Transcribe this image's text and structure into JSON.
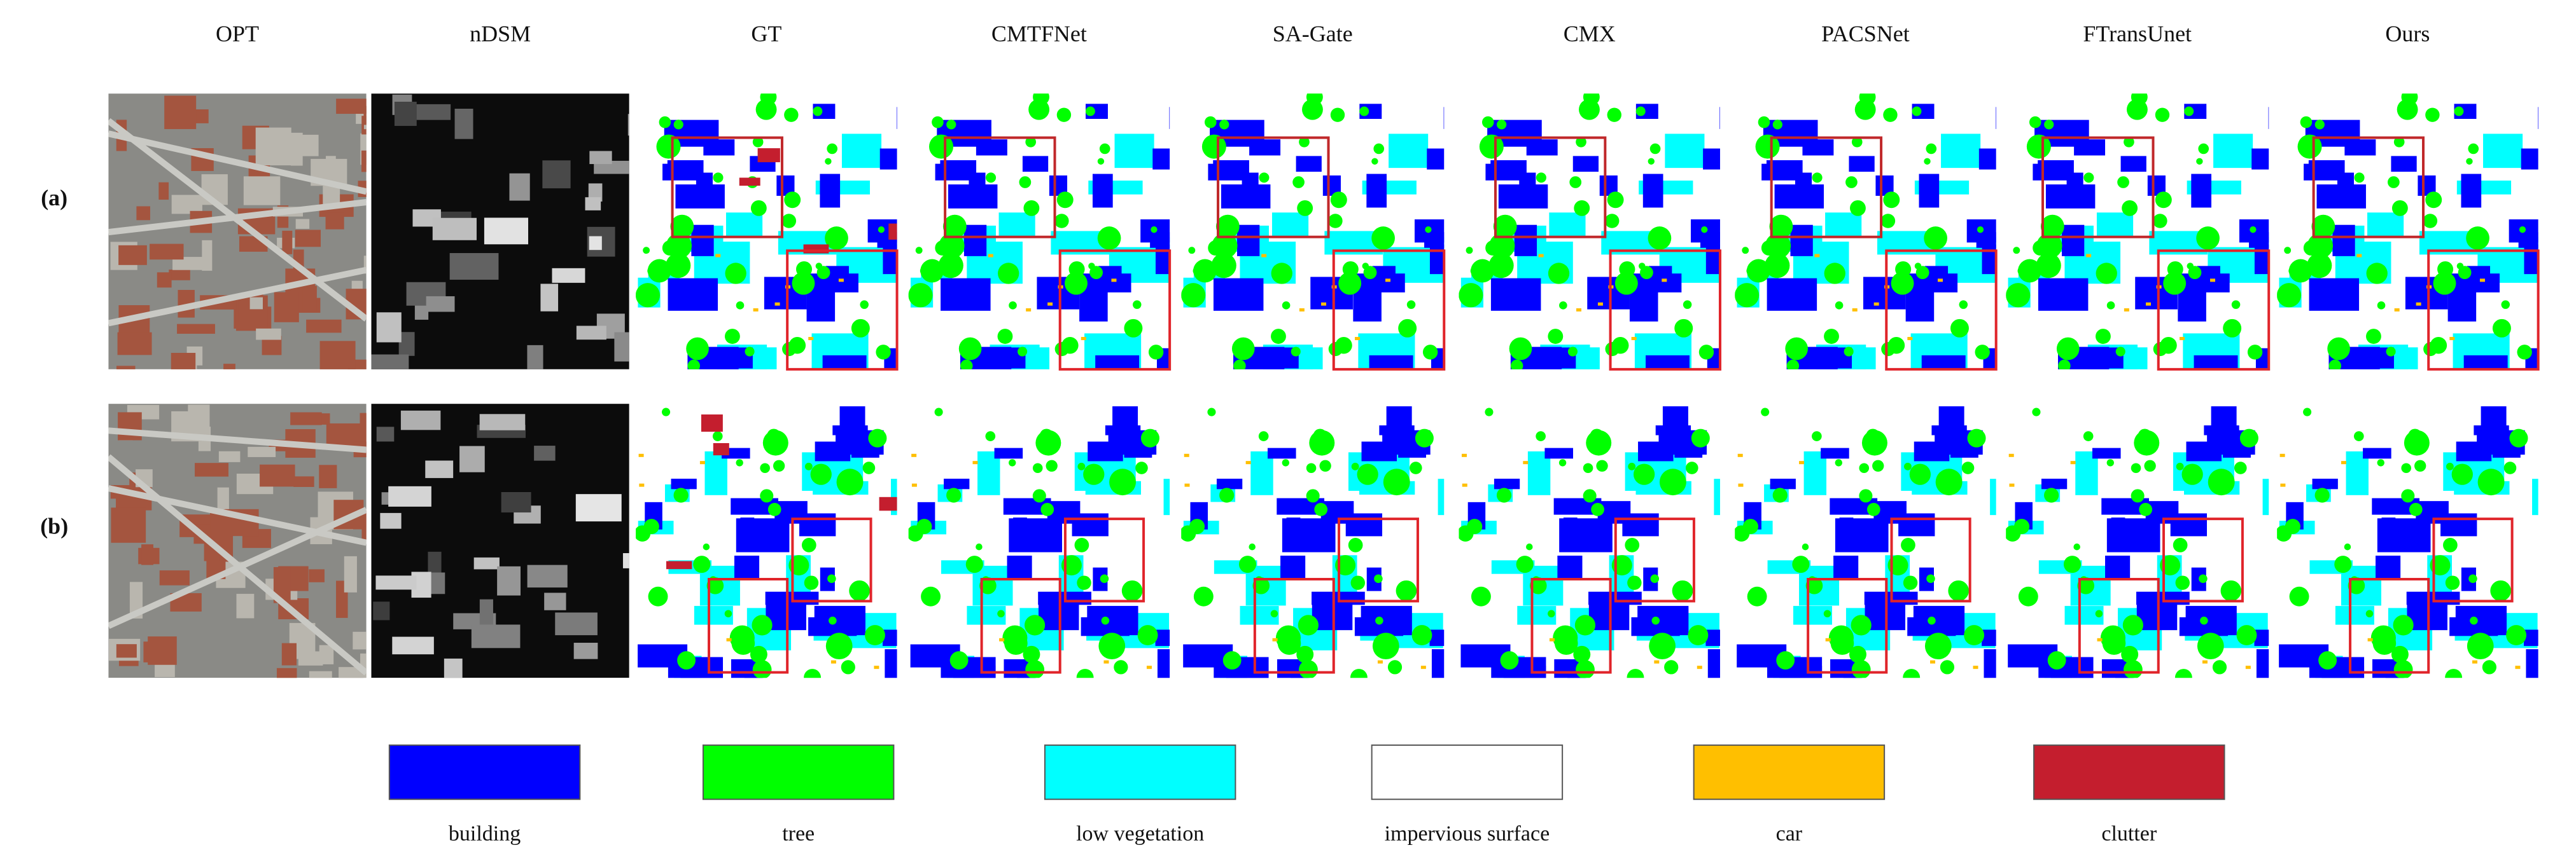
{
  "figure": {
    "columns": [
      "OPT",
      "nDSM",
      "GT",
      "CMTFNet",
      "SA-Gate",
      "CMX",
      "PACSNet",
      "FTransUnet",
      "Ours"
    ],
    "rows": [
      "(a)",
      "(b)"
    ],
    "legend": [
      {
        "label": "building",
        "color": "#0000ff"
      },
      {
        "label": "tree",
        "color": "#00ff00"
      },
      {
        "label": "low vegetation",
        "color": "#00ffff"
      },
      {
        "label": "impervious surface",
        "color": "#ffffff"
      },
      {
        "label": "car",
        "color": "#ffbf00"
      },
      {
        "label": "clutter",
        "color": "#c41e2e"
      }
    ]
  }
}
